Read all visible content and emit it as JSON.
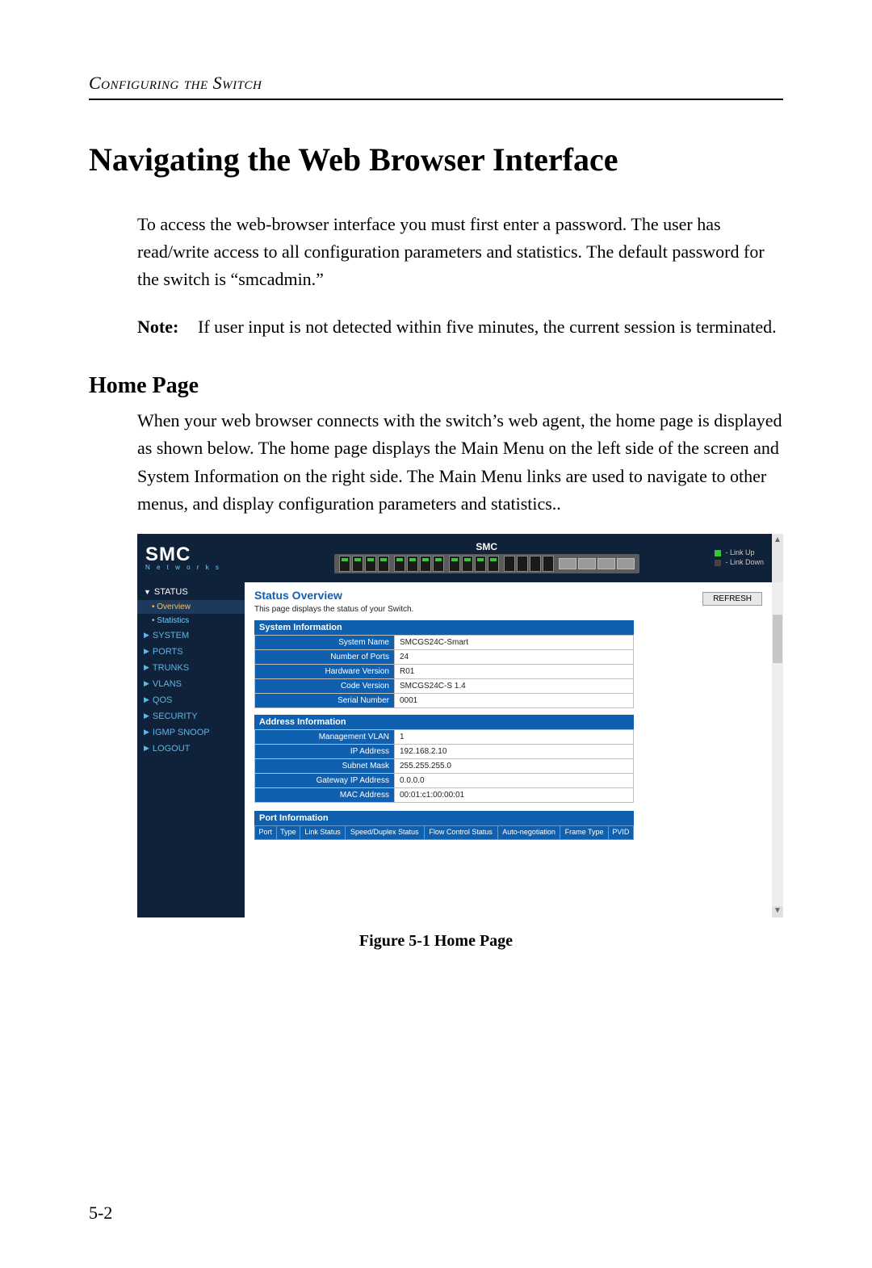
{
  "running_head": "Configuring the Switch",
  "title": "Navigating the Web Browser Interface",
  "intro": "To access the web-browser interface you must first enter a password. The user has read/write access to all configuration parameters and statistics. The default password for the switch is “smcadmin.”",
  "note_label": "Note:",
  "note_text": "If user input is not detected within five minutes, the current session is terminated.",
  "subheading": "Home Page",
  "homepage_text": "When your web browser connects with the switch’s web agent, the home page is displayed as shown below. The home page displays the Main Menu on the left side of the screen and System Information on the right side. The Main Menu links are used to navigate to other menus, and display configuration parameters and statistics..",
  "figure_caption": "Figure 5-1  Home Page",
  "page_number": "5-2",
  "screenshot": {
    "logo_main": "SMC",
    "logo_sub": "N e t w o r k s",
    "header_brand": "SMC",
    "legend_up": "- Link Up",
    "legend_down": "- Link Down",
    "port_groups": [
      {
        "count": 4,
        "up": true
      },
      {
        "count": 4,
        "up": true
      },
      {
        "count": 4,
        "up": true
      },
      {
        "count": 4,
        "up": false,
        "sfp": false
      },
      {
        "count": 4,
        "up": false,
        "sfp": true
      }
    ],
    "sidebar": [
      {
        "label": "STATUS",
        "expanded": true,
        "subs": [
          {
            "label": "Overview",
            "selected": true
          },
          {
            "label": "Statistics",
            "selected": false
          }
        ]
      },
      {
        "label": "SYSTEM"
      },
      {
        "label": "PORTS"
      },
      {
        "label": "TRUNKS"
      },
      {
        "label": "VLANS"
      },
      {
        "label": "QOS"
      },
      {
        "label": "SECURITY"
      },
      {
        "label": "IGMP SNOOP"
      },
      {
        "label": "LOGOUT"
      }
    ],
    "main_title": "Status Overview",
    "main_desc": "This page displays the status of your Switch.",
    "refresh_label": "REFRESH",
    "sys_info_caption": "System Information",
    "sys_info_rows": [
      {
        "key": "System Name",
        "val": "SMCGS24C-Smart"
      },
      {
        "key": "Number of Ports",
        "val": "24"
      },
      {
        "key": "Hardware Version",
        "val": "R01"
      },
      {
        "key": "Code Version",
        "val": "SMCGS24C-S 1.4"
      },
      {
        "key": "Serial Number",
        "val": "0001"
      }
    ],
    "addr_info_caption": "Address Information",
    "addr_info_rows": [
      {
        "key": "Management VLAN",
        "val": "1"
      },
      {
        "key": "IP Address",
        "val": "192.168.2.10"
      },
      {
        "key": "Subnet Mask",
        "val": "255.255.255.0"
      },
      {
        "key": "Gateway IP Address",
        "val": "0.0.0.0"
      },
      {
        "key": "MAC Address",
        "val": "00:01:c1:00:00:01"
      }
    ],
    "port_info_caption": "Port Information",
    "port_info_headers": [
      "Port",
      "Type",
      "Link Status",
      "Speed/Duplex Status",
      "Flow Control Status",
      "Auto-negotiation",
      "Frame Type",
      "PVID"
    ]
  }
}
